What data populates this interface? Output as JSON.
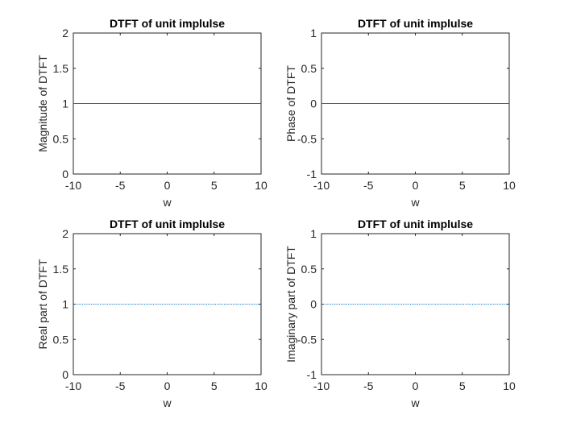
{
  "chart_data": [
    {
      "type": "line",
      "title": "DTFT of unit implulse",
      "xlabel": "w",
      "ylabel": "Magnitude of DTFT",
      "xlim": [
        -10,
        10
      ],
      "ylim": [
        0,
        2
      ],
      "xticks": [
        "-10",
        "-5",
        "0",
        "5",
        "10"
      ],
      "yticks": [
        "0",
        "0.5",
        "1",
        "1.5",
        "2"
      ],
      "series": [
        {
          "x": [
            -10,
            10
          ],
          "y": [
            1,
            1
          ],
          "color": "#0072BD",
          "style": "solid"
        }
      ]
    },
    {
      "type": "line",
      "title": "DTFT of unit implulse",
      "xlabel": "w",
      "ylabel": "Phase of DTFT",
      "xlim": [
        -10,
        10
      ],
      "ylim": [
        -1,
        1
      ],
      "xticks": [
        "-10",
        "-5",
        "0",
        "5",
        "10"
      ],
      "yticks": [
        "-1",
        "-0.5",
        "0",
        "0.5",
        "1"
      ],
      "series": [
        {
          "x": [
            -10,
            10
          ],
          "y": [
            0,
            0
          ],
          "color": "#0072BD",
          "style": "solid"
        }
      ]
    },
    {
      "type": "line",
      "title": "DTFT of unit implulse",
      "xlabel": "w",
      "ylabel": "Real part of DTFT",
      "xlim": [
        -10,
        10
      ],
      "ylim": [
        0,
        2
      ],
      "xticks": [
        "-10",
        "-5",
        "0",
        "5",
        "10"
      ],
      "yticks": [
        "0",
        "0.5",
        "1",
        "1.5",
        "2"
      ],
      "series": [
        {
          "x": [
            -10,
            10
          ],
          "y": [
            1,
            1
          ],
          "color": "#0072BD",
          "style": "dotted"
        }
      ]
    },
    {
      "type": "line",
      "title": "DTFT of unit implulse",
      "xlabel": "w",
      "ylabel": "Imaginary part of DTFT",
      "xlim": [
        -10,
        10
      ],
      "ylim": [
        -1,
        1
      ],
      "xticks": [
        "-10",
        "-5",
        "0",
        "5",
        "10"
      ],
      "yticks": [
        "-1",
        "-0.5",
        "0",
        "0.5",
        "1"
      ],
      "series": [
        {
          "x": [
            -10,
            10
          ],
          "y": [
            0,
            0
          ],
          "color": "#0072BD",
          "style": "dotted"
        }
      ]
    }
  ]
}
